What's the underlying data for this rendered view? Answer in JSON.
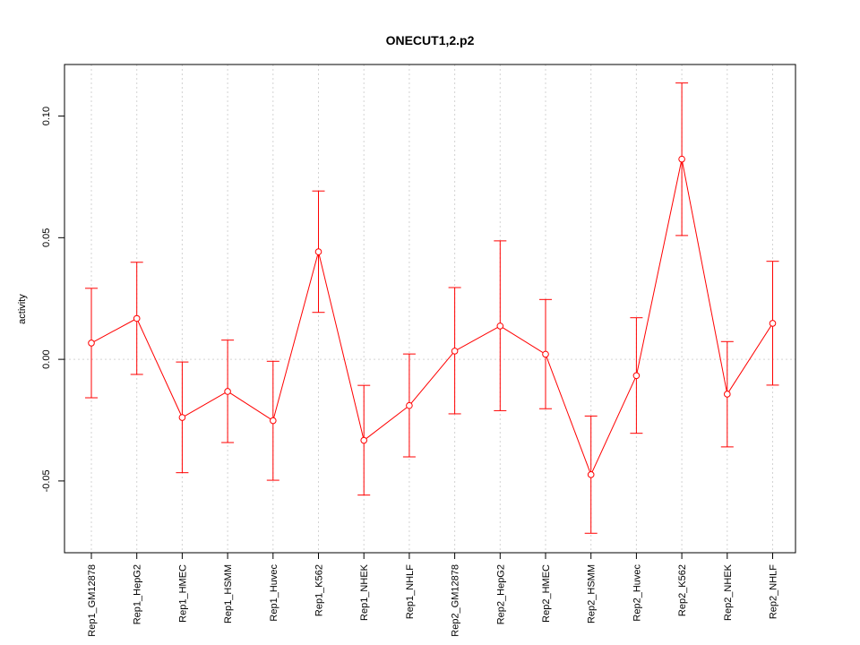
{
  "chart_data": {
    "type": "line",
    "title": "ONECUT1,2.p2",
    "xlabel": "",
    "ylabel": "activity",
    "categories": [
      "Rep1_GM12878",
      "Rep1_HepG2",
      "Rep1_HMEC",
      "Rep1_HSMM",
      "Rep1_Huvec",
      "Rep1_K562",
      "Rep1_NHEK",
      "Rep1_NHLF",
      "Rep2_GM12878",
      "Rep2_HepG2",
      "Rep2_HMEC",
      "Rep2_HSMM",
      "Rep2_Huvec",
      "Rep2_K562",
      "Rep2_NHEK",
      "Rep2_NHLF"
    ],
    "values": [
      0.0067,
      0.0168,
      -0.0239,
      -0.0132,
      -0.0252,
      0.0442,
      -0.0333,
      -0.019,
      0.0034,
      0.0137,
      0.0021,
      -0.0474,
      -0.0067,
      0.0823,
      -0.0143,
      0.0148
    ],
    "error_low": [
      -0.0158,
      -0.0062,
      -0.0466,
      -0.0342,
      -0.0497,
      0.0193,
      -0.0558,
      -0.0401,
      -0.0224,
      -0.0211,
      -0.0203,
      -0.0715,
      -0.0304,
      0.0509,
      -0.036,
      -0.0106
    ],
    "error_high": [
      0.0292,
      0.0399,
      -0.0011,
      0.0079,
      -0.0008,
      0.0692,
      -0.0107,
      0.0022,
      0.0295,
      0.0487,
      0.0246,
      -0.0233,
      0.0171,
      0.1136,
      0.0073,
      0.0403
    ],
    "yticks": [
      -0.05,
      0.0,
      0.05,
      0.1
    ],
    "ytick_labels": [
      "-0.05",
      "0.00",
      "0.05",
      "0.10"
    ],
    "ylim": [
      -0.0795,
      0.1212
    ],
    "grid": true,
    "reference_line": 0.0,
    "series_color": "#ff0000",
    "grid_color": "#d3d3d3"
  }
}
